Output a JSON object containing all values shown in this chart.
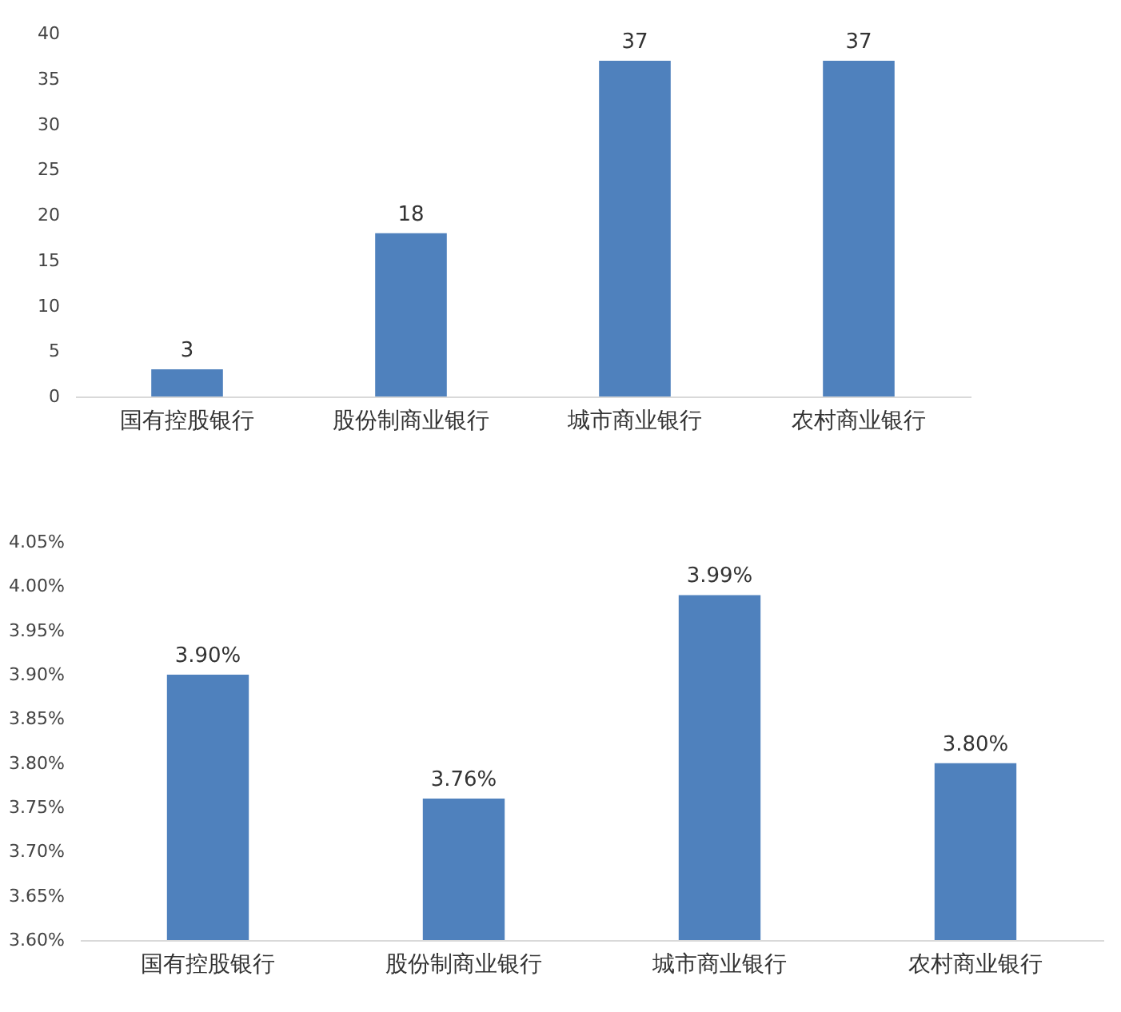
{
  "chart_data": [
    {
      "type": "bar",
      "categories": [
        "国有控股银行",
        "股份制商业银行",
        "城市商业银行",
        "农村商业银行"
      ],
      "values": [
        3,
        18,
        37,
        37
      ],
      "color": "#4f81bd",
      "ylim": [
        0,
        40
      ],
      "yticks": [
        0,
        5,
        10,
        15,
        20,
        25,
        30,
        35,
        40
      ],
      "grid": false,
      "data_labels": true
    },
    {
      "type": "bar",
      "categories": [
        "国有控股银行",
        "股份制商业银行",
        "城市商业银行",
        "农村商业银行"
      ],
      "values": [
        3.9,
        3.76,
        3.99,
        3.8
      ],
      "value_labels": [
        "3.90%",
        "3.76%",
        "3.99%",
        "3.80%"
      ],
      "color": "#4f81bd",
      "ylim": [
        3.6,
        4.05
      ],
      "yticks": [
        {
          "value": 3.6,
          "label": "3.60%"
        },
        {
          "value": 3.65,
          "label": "3.65%"
        },
        {
          "value": 3.7,
          "label": "3.70%"
        },
        {
          "value": 3.75,
          "label": "3.75%"
        },
        {
          "value": 3.8,
          "label": "3.80%"
        },
        {
          "value": 3.85,
          "label": "3.85%"
        },
        {
          "value": 3.9,
          "label": "3.90%"
        },
        {
          "value": 3.95,
          "label": "3.95%"
        },
        {
          "value": 4.0,
          "label": "4.00%"
        },
        {
          "value": 4.05,
          "label": "4.05%"
        }
      ],
      "grid": false
    }
  ]
}
